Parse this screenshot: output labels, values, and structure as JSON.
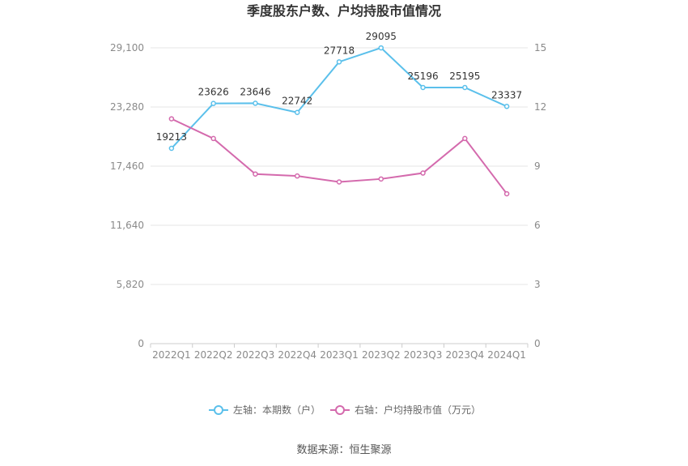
{
  "chart_data": {
    "type": "line",
    "title": "季度股东户数、户均持股市值情况",
    "categories": [
      "2022Q1",
      "2022Q2",
      "2022Q3",
      "2022Q4",
      "2023Q1",
      "2023Q2",
      "2023Q3",
      "2023Q4",
      "2024Q1"
    ],
    "left_axis": {
      "ylim": [
        0,
        29100
      ],
      "ticks": [
        "0",
        "5,820",
        "11,640",
        "17,460",
        "23,280",
        "29,100"
      ]
    },
    "right_axis": {
      "ylim": [
        0,
        15
      ],
      "ticks": [
        "0",
        "3",
        "6",
        "9",
        "12",
        "15"
      ]
    },
    "series": [
      {
        "name": "左轴：本期数（户）",
        "axis": "left",
        "color": "#5bc0eb",
        "values": [
          19213,
          23626,
          23646,
          22742,
          27718,
          29095,
          25196,
          25195,
          23337
        ],
        "labels": [
          "19213",
          "23626",
          "23646",
          "22742",
          "27718",
          "29095",
          "25196",
          "25195",
          "23337"
        ]
      },
      {
        "name": "右轴：户均持股市值（万元）",
        "axis": "right",
        "color": "#d46aad",
        "values": [
          11.4,
          10.4,
          8.6,
          8.5,
          8.2,
          8.35,
          8.65,
          10.4,
          7.6
        ]
      }
    ],
    "legend_position": "bottom-center",
    "grid": true
  },
  "source": "数据来源：恒生聚源"
}
